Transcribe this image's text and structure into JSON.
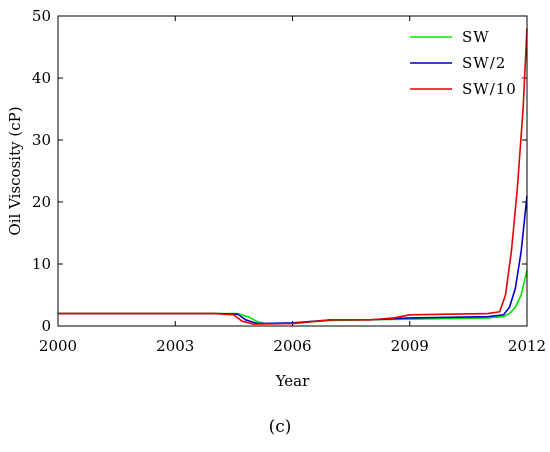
{
  "chart_data": {
    "type": "line",
    "xlabel": "Year",
    "ylabel": "Oil Viscosity (cP)",
    "xlim": [
      2000,
      2012
    ],
    "ylim": [
      0,
      50
    ],
    "xticks": [
      2000,
      2003,
      2006,
      2009,
      2012
    ],
    "yticks": [
      0,
      10,
      20,
      30,
      40,
      50
    ],
    "legend_position": "top-right",
    "series": [
      {
        "name": "SW",
        "color": "#00e600",
        "x": [
          2000,
          2002,
          2004,
          2004.6,
          2004.9,
          2005.1,
          2005.3,
          2006,
          2007,
          2008,
          2009,
          2010,
          2011,
          2011.4,
          2011.55,
          2011.7,
          2011.85,
          2012
        ],
        "y": [
          2.0,
          2.0,
          2.0,
          2.0,
          1.4,
          0.7,
          0.4,
          0.5,
          0.9,
          1.0,
          1.1,
          1.2,
          1.3,
          1.5,
          2.0,
          3.0,
          5.0,
          9.0
        ]
      },
      {
        "name": "SW/2",
        "color": "#0000cc",
        "x": [
          2000,
          2002,
          2004,
          2004.6,
          2004.8,
          2005.1,
          2006,
          2007,
          2008,
          2009,
          2010,
          2011,
          2011.4,
          2011.55,
          2011.7,
          2011.85,
          2012
        ],
        "y": [
          2.0,
          2.0,
          2.0,
          1.9,
          1.0,
          0.4,
          0.5,
          1.0,
          1.0,
          1.3,
          1.4,
          1.5,
          1.8,
          3.0,
          6.0,
          12.0,
          21.0
        ]
      },
      {
        "name": "SW/10",
        "color": "#e60000",
        "x": [
          2000,
          2002,
          2004,
          2004.5,
          2004.7,
          2005,
          2006,
          2007,
          2008,
          2008.6,
          2009,
          2010,
          2011,
          2011.3,
          2011.45,
          2011.6,
          2011.75,
          2011.9,
          2012
        ],
        "y": [
          2.0,
          2.0,
          2.0,
          1.8,
          0.8,
          0.3,
          0.4,
          1.0,
          1.0,
          1.3,
          1.8,
          1.9,
          2.0,
          2.3,
          5.0,
          12.0,
          22.0,
          35.0,
          48.0
        ]
      }
    ]
  },
  "caption": "(c)"
}
